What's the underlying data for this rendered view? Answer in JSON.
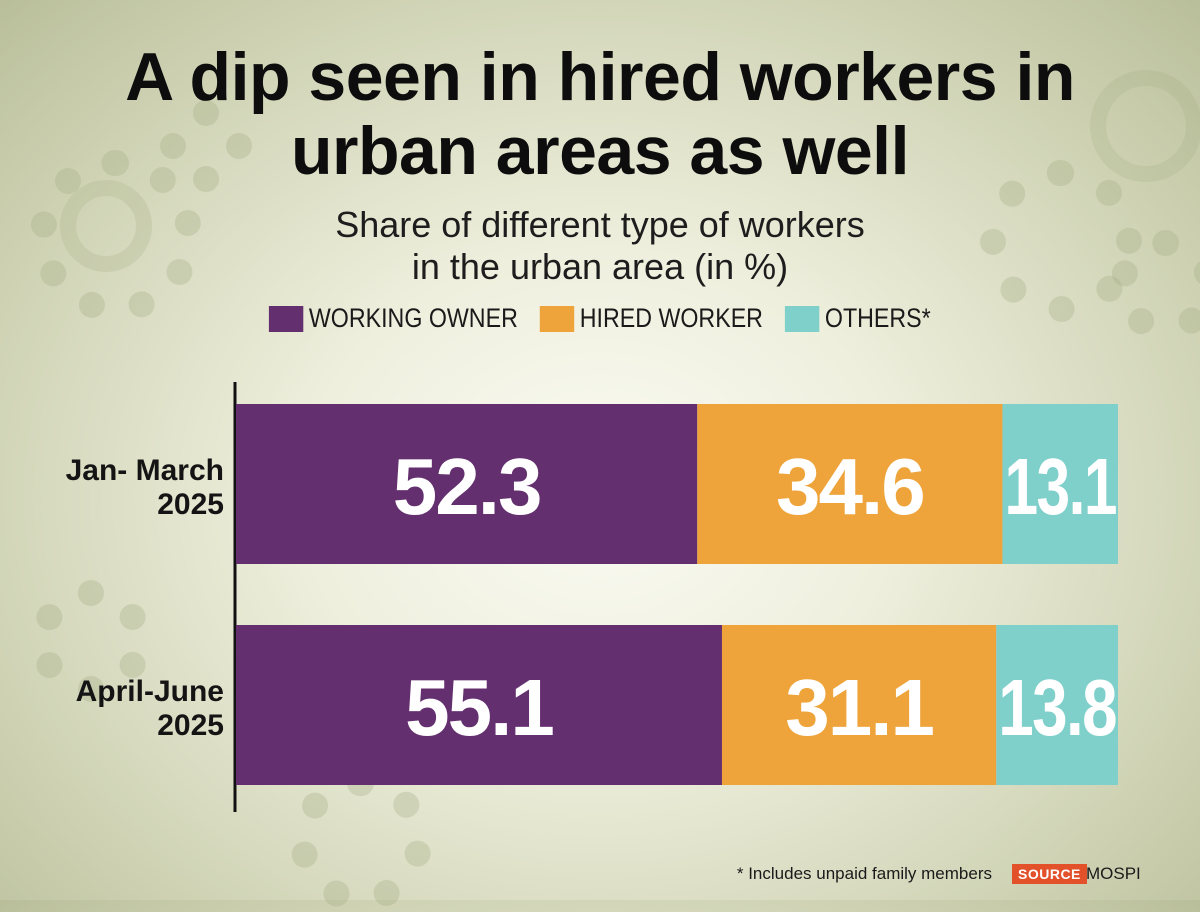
{
  "title_lines": [
    "A dip seen in hired workers in",
    "urban areas as well"
  ],
  "subtitle_lines": [
    "Share of different type of workers",
    "in the urban area (in %)"
  ],
  "colors": {
    "working_owner": "#642f6f",
    "hired_worker": "#eea43a",
    "others": "#7fcfcb"
  },
  "chart_data": {
    "type": "bar",
    "orientation": "horizontal",
    "stacked": true,
    "categories": [
      "Jan- March 2025",
      "April-June 2025"
    ],
    "series": [
      {
        "name": "WORKING OWNER",
        "values": [
          52.3,
          55.1
        ]
      },
      {
        "name": "HIRED WORKER",
        "values": [
          34.6,
          31.1
        ]
      },
      {
        "name": "OTHERS*",
        "values": [
          13.1,
          13.8
        ]
      }
    ],
    "xlim": [
      0,
      100
    ],
    "grid": false,
    "legend": "top"
  },
  "footnote": "* Includes unpaid family members",
  "source_label": "SOURCE",
  "source_name": "MOSPI"
}
